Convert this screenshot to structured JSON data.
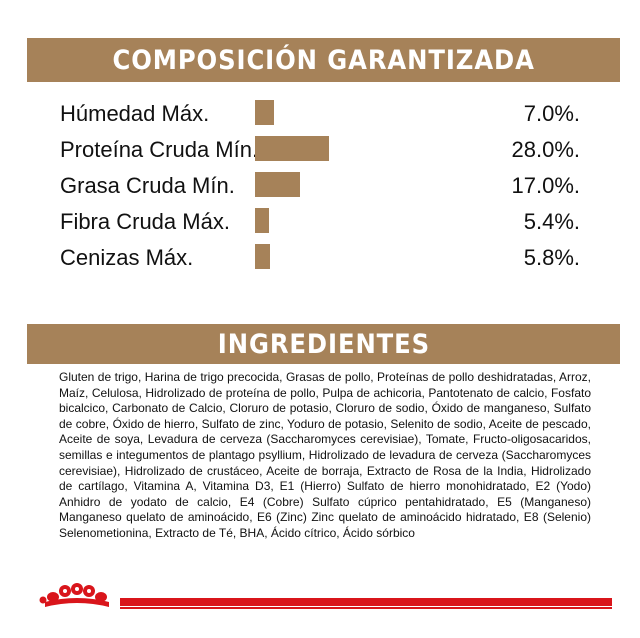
{
  "colors": {
    "header_bg": "#a68259",
    "bar": "#a68259",
    "brand_red": "#d9151b"
  },
  "composition": {
    "title": "COMPOSICIÓN GARANTIZADA",
    "rows": [
      {
        "label": "Húmedad Máx.",
        "value": "7.0%.",
        "percent": 7.0
      },
      {
        "label": "Proteína Cruda Mín.",
        "value": "28.0%.",
        "percent": 28.0
      },
      {
        "label": "Grasa Cruda Mín.",
        "value": "17.0%.",
        "percent": 17.0
      },
      {
        "label": "Fibra Cruda Máx.",
        "value": "5.4%.",
        "percent": 5.4
      },
      {
        "label": "Cenizas Máx.",
        "value": "5.8%.",
        "percent": 5.8
      }
    ]
  },
  "ingredients": {
    "title": "INGREDIENTES",
    "text": "Gluten de trigo, Harina de trigo precocida, Grasas  de pollo, Proteínas de pollo deshidratadas, Arroz, Maíz, Celulosa, Hidrolizado de proteína de pollo, Pulpa de achicoria, Pantotenato de calcio, Fosfato bicalcico, Carbonato de Calcio, Cloruro de potasio, Cloruro de sodio, Óxido de manganeso, Sulfato de cobre, Óxido de hierro, Sulfato de zinc, Yoduro de potasio, Selenito de sodio, Aceite de pescado, Aceite de soya, Levadura de cerveza (Saccharomyces cerevisiae), Tomate, Fructo-oligosacaridos, semillas e integumentos de plantago psyllium, Hidrolizado de levadura de cerveza (Saccharomyces cerevisiae), Hidrolizado de crustáceo, Aceite de borraja, Extracto de Rosa de la India, Hidrolizado de cartílago, Vitamina A, Vitamina D3, E1 (Hierro) Sulfato de hierro monohidratado, E2 (Yodo) Anhidro de yodato de calcio, E4 (Cobre) Sulfato cúprico pentahidratado, E5 (Manganeso) Manganeso quelato de aminoácido, E6 (Zinc) Zinc quelato de aminoácido hidratado, E8 (Selenio) Selenometionina, Extracto de Té, BHA, Ácido cítrico, Ácido sórbico"
  },
  "footer": {
    "logo_icon": "royal-canin-crown-logo-icon"
  }
}
